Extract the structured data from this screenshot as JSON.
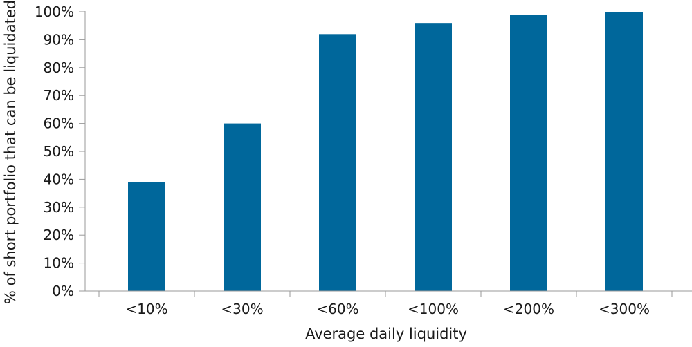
{
  "chart_data": {
    "type": "bar",
    "categories": [
      "<10%",
      "<30%",
      "<60%",
      "<100%",
      "<200%",
      "<300%"
    ],
    "values": [
      39,
      60,
      92,
      96,
      99,
      100
    ],
    "title": "",
    "xlabel": "Average daily liquidity",
    "ylabel": "% of short portfolio that can be liquidated",
    "ylim": [
      0,
      100
    ],
    "yticks": [
      0,
      10,
      20,
      30,
      40,
      50,
      60,
      70,
      80,
      90,
      100
    ],
    "ytick_labels": [
      "0%",
      "10%",
      "20%",
      "30%",
      "40%",
      "50%",
      "60%",
      "70%",
      "80%",
      "90%",
      "100%"
    ],
    "grid": false,
    "legend": "none",
    "bar_color": "#00679b",
    "axis_color": "#9a9a9a"
  }
}
